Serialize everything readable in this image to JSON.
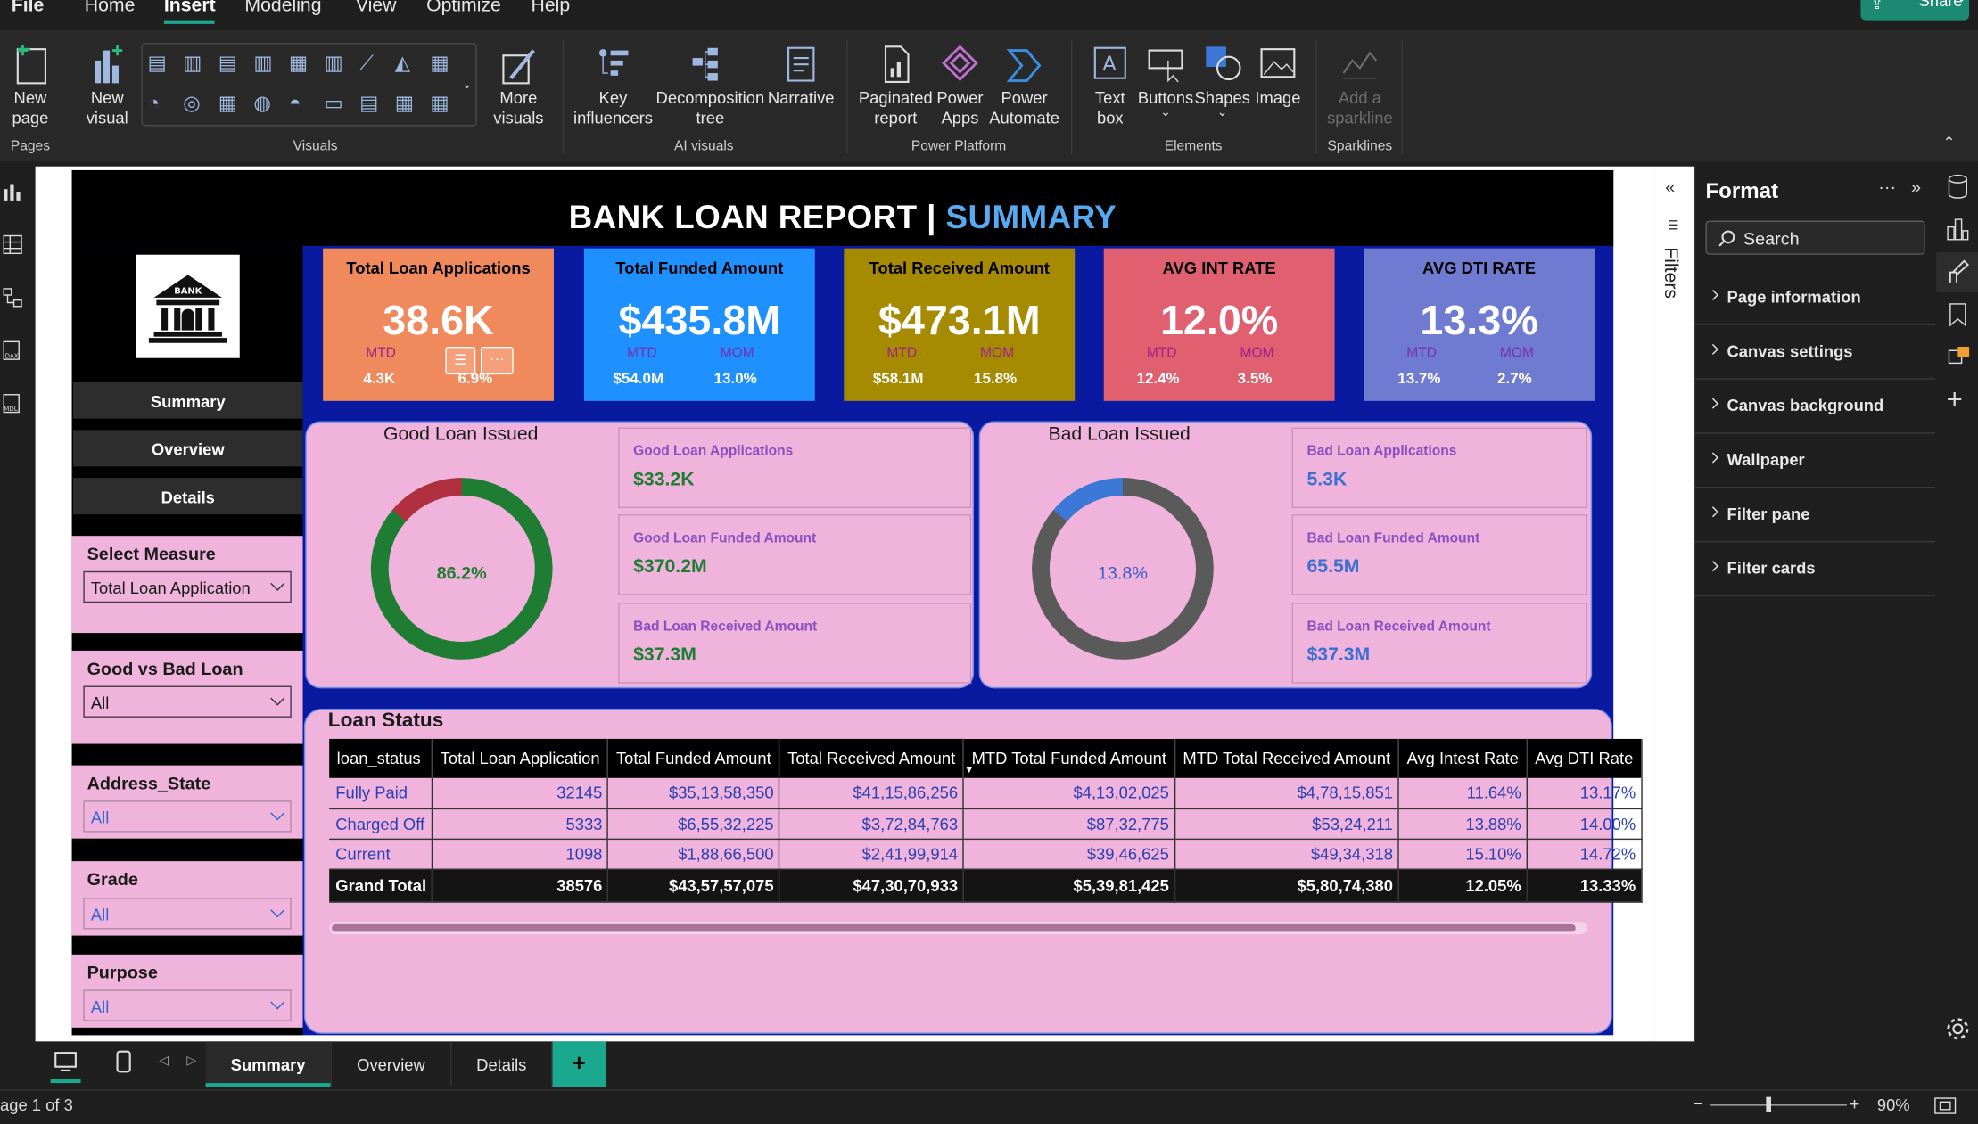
{
  "menu": {
    "items": [
      "File",
      "Home",
      "Insert",
      "Modeling",
      "View",
      "Optimize",
      "Help"
    ],
    "active": "Insert",
    "share_label": "Share"
  },
  "ribbon": {
    "new_page": "New\npage",
    "new_visual": "New\nvisual",
    "more_visuals": "More\nvisuals",
    "key_influencers": "Key\ninfluencers",
    "decomposition_tree": "Decomposition\ntree",
    "narrative": "Narrative",
    "paginated_report": "Paginated\nreport",
    "power_apps": "Power\nApps",
    "power_automate": "Power\nAutomate",
    "text_box": "Text\nbox",
    "buttons": "Buttons",
    "shapes": "Shapes",
    "image": "Image",
    "add_sparkline": "Add a\nsparkline",
    "groups": {
      "pages": "Pages",
      "visuals": "Visuals",
      "ai_visuals": "AI visuals",
      "power_platform": "Power Platform",
      "elements": "Elements",
      "sparklines": "Sparklines"
    }
  },
  "report": {
    "title_main": "BANK LOAN REPORT | ",
    "title_accent": "SUMMARY",
    "logo_text": "BANK",
    "nav": [
      "Summary",
      "Overview",
      "Details"
    ],
    "slicers": {
      "measure_title": "Select Measure",
      "measure_value": "Total Loan Application",
      "goodbad_title": "Good vs Bad Loan",
      "goodbad_value": "All",
      "state_title": "Address_State",
      "state_value": "All",
      "grade_title": "Grade",
      "grade_value": "All",
      "purpose_title": "Purpose",
      "purpose_value": "All"
    },
    "kpis": [
      {
        "title": "Total Loan Applications",
        "value": "38.6K",
        "mtd_label": "MTD",
        "mtd": "4.3K",
        "mom_label": "",
        "mom": "6.9%",
        "color": "#f08a5d"
      },
      {
        "title": "Total Funded Amount",
        "value": "$435.8M",
        "mtd_label": "MTD",
        "mtd": "$54.0M",
        "mom_label": "MOM",
        "mom": "13.0%",
        "color": "#1e90ff"
      },
      {
        "title": "Total Received Amount",
        "value": "$473.1M",
        "mtd_label": "MTD",
        "mtd": "$58.1M",
        "mom_label": "MOM",
        "mom": "15.8%",
        "color": "#a68a00"
      },
      {
        "title": "AVG INT RATE",
        "value": "12.0%",
        "mtd_label": "MTD",
        "mtd": "12.4%",
        "mom_label": "MOM",
        "mom": "3.5%",
        "color": "#e06070"
      },
      {
        "title": "AVG DTI RATE",
        "value": "13.3%",
        "mtd_label": "MTD",
        "mtd": "13.7%",
        "mom_label": "MOM",
        "mom": "2.7%",
        "color": "#6f7bd0"
      }
    ],
    "good_loan": {
      "title": "Good Loan Issued",
      "donut_label": "86.2%",
      "donut_pct": 0.862,
      "main_color": "#1e7d32",
      "rest_color": "#b03040",
      "cards": [
        {
          "label": "Good Loan Applications",
          "value": "$33.2K"
        },
        {
          "label": "Good Loan Funded Amount",
          "value": "$370.2M"
        },
        {
          "label": "Bad Loan Received Amount",
          "value": "$37.3M"
        }
      ]
    },
    "bad_loan": {
      "title": "Bad Loan Issued",
      "donut_label": "13.8%",
      "donut_pct": 0.138,
      "main_color": "#3b78d8",
      "rest_color": "#5a5a5a",
      "cards": [
        {
          "label": "Bad Loan Applications",
          "value": "5.3K"
        },
        {
          "label": "Bad Loan Funded Amount",
          "value": "65.5M"
        },
        {
          "label": "Bad Loan Received Amount",
          "value": "$37.3M"
        }
      ]
    },
    "loan_status": {
      "title": "Loan Status",
      "columns": [
        "loan_status",
        "Total Loan Application",
        "Total Funded Amount",
        "Total Received Amount",
        "MTD Total Funded Amount",
        "MTD Total Received Amount",
        "Avg Intest Rate",
        "Avg DTI Rate"
      ],
      "rows": [
        [
          "Fully Paid",
          "32145",
          "$35,13,58,350",
          "$41,15,86,256",
          "$4,13,02,025",
          "$4,78,15,851",
          "11.64%",
          "13.17%"
        ],
        [
          "Charged Off",
          "5333",
          "$6,55,32,225",
          "$3,72,84,763",
          "$87,32,775",
          "$53,24,211",
          "13.88%",
          "14.00%"
        ],
        [
          "Current",
          "1098",
          "$1,88,66,500",
          "$2,41,99,914",
          "$39,46,625",
          "$49,34,318",
          "15.10%",
          "14.72%"
        ]
      ],
      "total": [
        "Grand Total",
        "38576",
        "$43,57,57,075",
        "$47,30,70,933",
        "$5,39,81,425",
        "$5,80,74,380",
        "12.05%",
        "13.33%"
      ]
    }
  },
  "filters_label": "Filters",
  "format_pane": {
    "title": "Format",
    "search_placeholder": "Search",
    "items": [
      "Page information",
      "Canvas settings",
      "Canvas background",
      "Wallpaper",
      "Filter pane",
      "Filter cards"
    ]
  },
  "tabs": {
    "pages": [
      "Summary",
      "Overview",
      "Details"
    ],
    "active": "Summary",
    "add_label": "+"
  },
  "status": {
    "page_info": "age 1 of 3",
    "zoom": "90%"
  }
}
